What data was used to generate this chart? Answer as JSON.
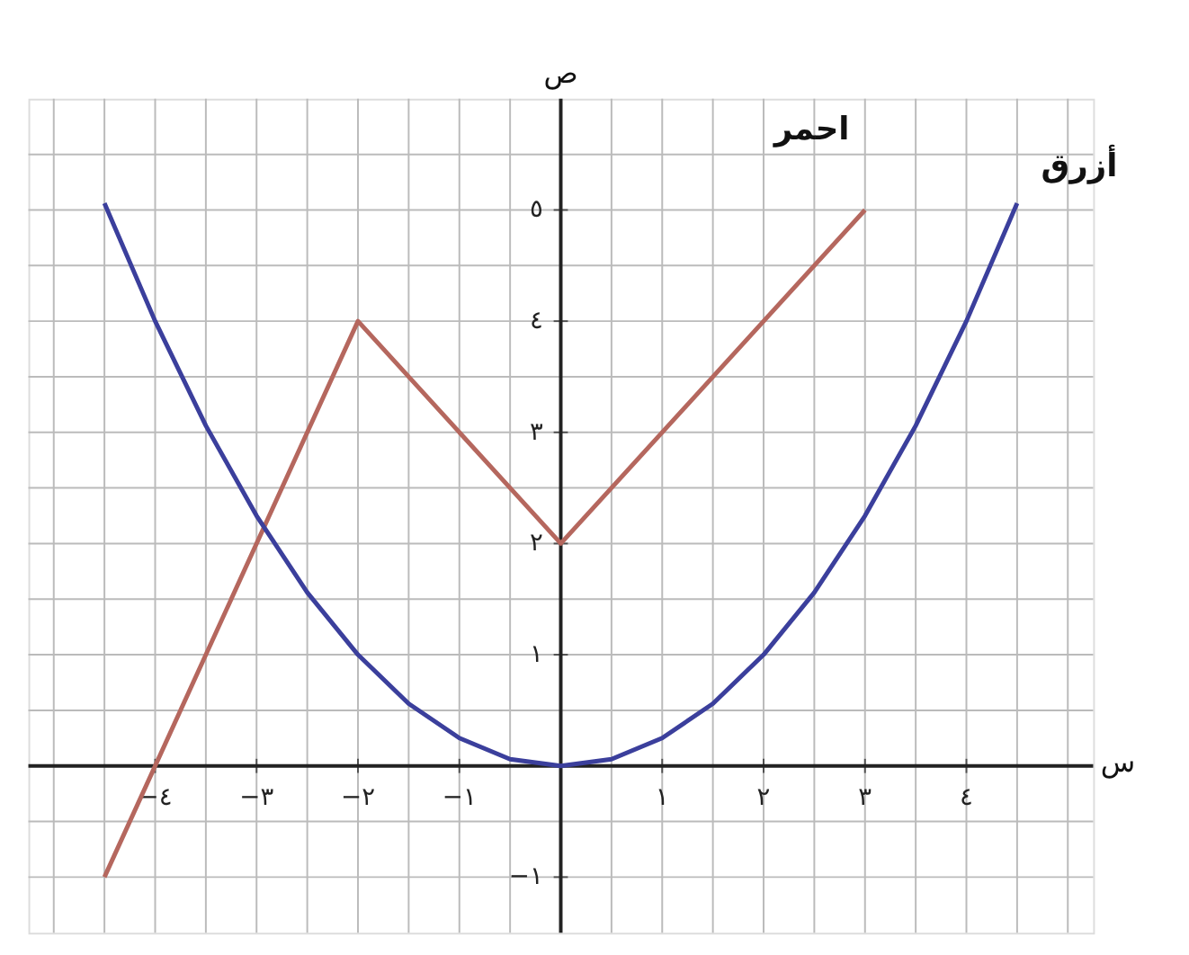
{
  "chart_data": {
    "type": "line",
    "xlabel": "س",
    "ylabel": "ص",
    "xlim": [
      -5.25,
      5.25
    ],
    "ylim": [
      -1.5,
      6
    ],
    "xticks": [
      {
        "value": -5,
        "label": null
      },
      {
        "value": -4.5,
        "label": null
      },
      {
        "value": -4,
        "label": "−٤"
      },
      {
        "value": -3.5,
        "label": null
      },
      {
        "value": -3,
        "label": "−٣"
      },
      {
        "value": -2.5,
        "label": null
      },
      {
        "value": -2,
        "label": "−٢"
      },
      {
        "value": -1.5,
        "label": null
      },
      {
        "value": -1,
        "label": "−١"
      },
      {
        "value": -0.5,
        "label": null
      },
      {
        "value": 0.5,
        "label": null
      },
      {
        "value": 1,
        "label": "١"
      },
      {
        "value": 1.5,
        "label": null
      },
      {
        "value": 2,
        "label": "٢"
      },
      {
        "value": 2.5,
        "label": null
      },
      {
        "value": 3,
        "label": "٣"
      },
      {
        "value": 3.5,
        "label": null
      },
      {
        "value": 4,
        "label": "٤"
      },
      {
        "value": 4.5,
        "label": null
      },
      {
        "value": 5,
        "label": null
      }
    ],
    "yticks": [
      {
        "value": -1,
        "label": "−١"
      },
      {
        "value": -0.5,
        "label": null
      },
      {
        "value": 0.5,
        "label": null
      },
      {
        "value": 1,
        "label": "١"
      },
      {
        "value": 1.5,
        "label": null
      },
      {
        "value": 2,
        "label": "٢"
      },
      {
        "value": 2.5,
        "label": null
      },
      {
        "value": 3,
        "label": "٣"
      },
      {
        "value": 3.5,
        "label": null
      },
      {
        "value": 4,
        "label": "٤"
      },
      {
        "value": 4.5,
        "label": null
      },
      {
        "value": 5,
        "label": "٥"
      },
      {
        "value": 5.5,
        "label": null
      }
    ],
    "grid": true,
    "marker": "none",
    "line_style": "solid",
    "series": [
      {
        "name": "احمر",
        "color": "#b5675e",
        "x": [
          -4.5,
          -2,
          0,
          3
        ],
        "values": [
          -1,
          4,
          2,
          5
        ]
      },
      {
        "name": "أزرق",
        "color": "#3b3f9c",
        "x": [
          -4.5,
          -4,
          -3.5,
          -3,
          -2.5,
          -2,
          -1.5,
          -1,
          -0.5,
          0,
          0.5,
          1,
          1.5,
          2,
          2.5,
          3,
          3.5,
          4,
          4.5
        ],
        "values": [
          5.06,
          4,
          3.06,
          2.25,
          1.56,
          1,
          0.56,
          0.25,
          0.06,
          0,
          0.06,
          0.25,
          0.56,
          1,
          1.56,
          2.25,
          3.06,
          4,
          5.06
        ]
      }
    ]
  }
}
